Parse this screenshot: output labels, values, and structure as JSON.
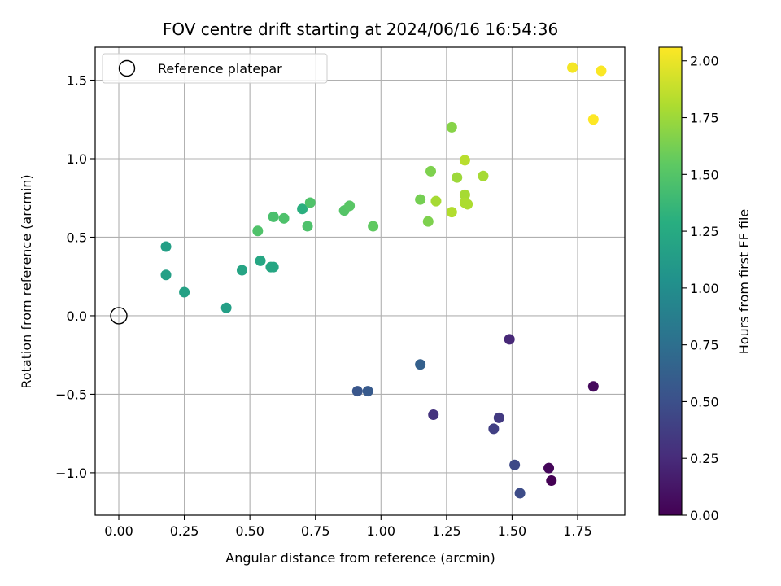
{
  "chart_data": {
    "type": "scatter",
    "title": "FOV centre drift starting at 2024/06/16 16:54:36",
    "xlabel": "Angular distance from reference (arcmin)",
    "ylabel": "Rotation from reference (arcmin)",
    "colorbar_label": "Hours from first FF file",
    "colormap": "viridis",
    "grid": true,
    "legend_position": "upper-left",
    "xlim": [
      -0.09,
      1.93
    ],
    "ylim": [
      -1.27,
      1.71
    ],
    "xticks": [
      0.0,
      0.25,
      0.5,
      0.75,
      1.0,
      1.25,
      1.5,
      1.75
    ],
    "xtick_labels": [
      "0.00",
      "0.25",
      "0.50",
      "0.75",
      "1.00",
      "1.25",
      "1.50",
      "1.75"
    ],
    "yticks": [
      -1.0,
      -0.5,
      0.0,
      0.5,
      1.0,
      1.5
    ],
    "ytick_labels": [
      "−1.0",
      "−0.5",
      "0.0",
      "0.5",
      "1.0",
      "1.5"
    ],
    "colorbar_range": [
      0.0,
      2.06
    ],
    "colorbar_ticks": [
      0.0,
      0.25,
      0.5,
      0.75,
      1.0,
      1.25,
      1.5,
      1.75,
      2.0
    ],
    "colorbar_tick_labels": [
      "0.00",
      "0.25",
      "0.50",
      "0.75",
      "1.00",
      "1.25",
      "1.50",
      "1.75",
      "2.00"
    ],
    "reference": {
      "name": "Reference platepar",
      "x": 0.0,
      "y": 0.0
    },
    "points": [
      {
        "x": 1.65,
        "y": -1.05,
        "hours": 0.0
      },
      {
        "x": 1.64,
        "y": -0.97,
        "hours": 0.03
      },
      {
        "x": 1.81,
        "y": -0.45,
        "hours": 0.05
      },
      {
        "x": 1.49,
        "y": -0.15,
        "hours": 0.23
      },
      {
        "x": 1.2,
        "y": -0.63,
        "hours": 0.3
      },
      {
        "x": 1.45,
        "y": -0.65,
        "hours": 0.35
      },
      {
        "x": 1.43,
        "y": -0.72,
        "hours": 0.38
      },
      {
        "x": 1.51,
        "y": -0.95,
        "hours": 0.45
      },
      {
        "x": 1.53,
        "y": -1.13,
        "hours": 0.47
      },
      {
        "x": 0.91,
        "y": -0.48,
        "hours": 0.55
      },
      {
        "x": 0.95,
        "y": -0.48,
        "hours": 0.58
      },
      {
        "x": 1.15,
        "y": -0.31,
        "hours": 0.63
      },
      {
        "x": 0.41,
        "y": 0.05,
        "hours": 1.15
      },
      {
        "x": 0.25,
        "y": 0.15,
        "hours": 1.17
      },
      {
        "x": 0.18,
        "y": 0.26,
        "hours": 1.15
      },
      {
        "x": 0.18,
        "y": 0.44,
        "hours": 1.15
      },
      {
        "x": 0.47,
        "y": 0.29,
        "hours": 1.2
      },
      {
        "x": 0.54,
        "y": 0.35,
        "hours": 1.22
      },
      {
        "x": 0.58,
        "y": 0.31,
        "hours": 1.22
      },
      {
        "x": 0.59,
        "y": 0.31,
        "hours": 1.22
      },
      {
        "x": 0.7,
        "y": 0.68,
        "hours": 1.3
      },
      {
        "x": 0.53,
        "y": 0.54,
        "hours": 1.48
      },
      {
        "x": 0.59,
        "y": 0.63,
        "hours": 1.45
      },
      {
        "x": 0.63,
        "y": 0.62,
        "hours": 1.47
      },
      {
        "x": 0.72,
        "y": 0.57,
        "hours": 1.47
      },
      {
        "x": 0.73,
        "y": 0.72,
        "hours": 1.48
      },
      {
        "x": 0.86,
        "y": 0.67,
        "hours": 1.5
      },
      {
        "x": 0.88,
        "y": 0.7,
        "hours": 1.52
      },
      {
        "x": 0.97,
        "y": 0.57,
        "hours": 1.55
      },
      {
        "x": 1.15,
        "y": 0.74,
        "hours": 1.62
      },
      {
        "x": 1.18,
        "y": 0.6,
        "hours": 1.65
      },
      {
        "x": 1.19,
        "y": 0.92,
        "hours": 1.65
      },
      {
        "x": 1.27,
        "y": 1.2,
        "hours": 1.68
      },
      {
        "x": 1.21,
        "y": 0.73,
        "hours": 1.78
      },
      {
        "x": 1.27,
        "y": 0.66,
        "hours": 1.82
      },
      {
        "x": 1.29,
        "y": 0.88,
        "hours": 1.75
      },
      {
        "x": 1.32,
        "y": 0.99,
        "hours": 1.84
      },
      {
        "x": 1.32,
        "y": 0.77,
        "hours": 1.78
      },
      {
        "x": 1.32,
        "y": 0.72,
        "hours": 1.8
      },
      {
        "x": 1.33,
        "y": 0.71,
        "hours": 1.8
      },
      {
        "x": 1.39,
        "y": 0.89,
        "hours": 1.78
      },
      {
        "x": 1.73,
        "y": 1.58,
        "hours": 2.03
      },
      {
        "x": 1.84,
        "y": 1.56,
        "hours": 2.05
      },
      {
        "x": 1.81,
        "y": 1.25,
        "hours": 2.06
      }
    ]
  }
}
